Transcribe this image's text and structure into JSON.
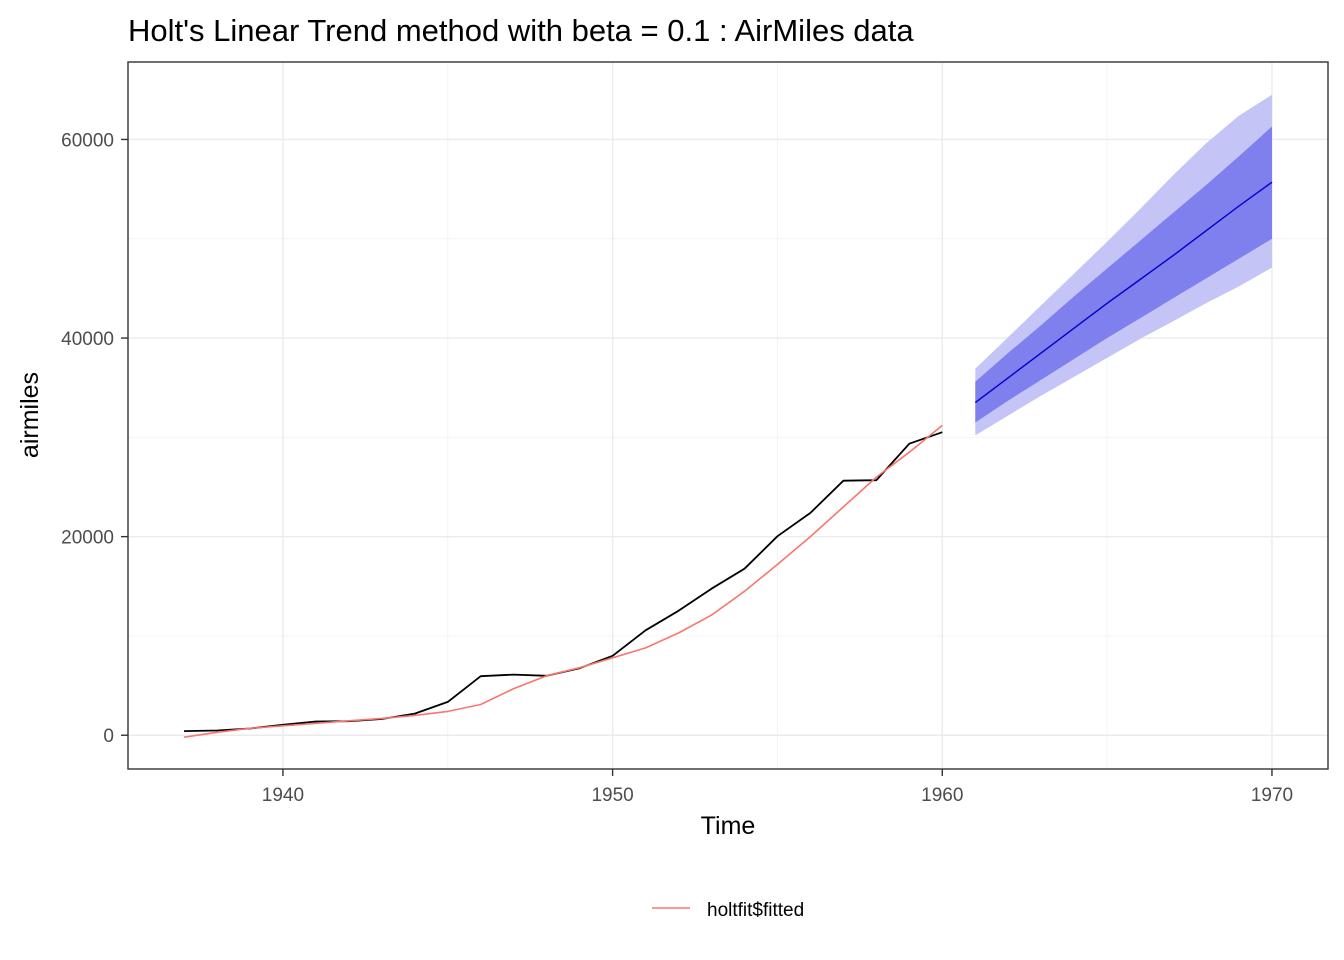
{
  "chart_data": {
    "type": "line",
    "title": "Holt's Linear Trend method with beta = 0.1 : AirMiles data",
    "xlabel": "Time",
    "ylabel": "airmiles",
    "xlim": [
      1935.3,
      1971.7
    ],
    "ylim": [
      -3400,
      67800
    ],
    "x_ticks": [
      1940,
      1950,
      1960,
      1970
    ],
    "x_tick_labels": [
      "1940",
      "1950",
      "1960",
      "1970"
    ],
    "y_ticks": [
      0,
      20000,
      40000,
      60000
    ],
    "y_tick_labels": [
      "0",
      "20000",
      "40000",
      "60000"
    ],
    "x_minor": [
      1945,
      1955,
      1965
    ],
    "y_minor": [
      10000,
      30000,
      50000
    ],
    "grid": true,
    "legend_position": "bottom",
    "series": [
      {
        "name": "",
        "color": "#000000",
        "x": [
          1937,
          1938,
          1939,
          1940,
          1941,
          1942,
          1943,
          1944,
          1945,
          1946,
          1947,
          1948,
          1949,
          1950,
          1951,
          1952,
          1953,
          1954,
          1955,
          1956,
          1957,
          1958,
          1959,
          1960
        ],
        "values": [
          412,
          480,
          683,
          1052,
          1385,
          1418,
          1634,
          2178,
          3362,
          5948,
          6109,
          5981,
          6753,
          8003,
          10566,
          12528,
          14760,
          16769,
          20043,
          22395,
          25633,
          25686,
          29365,
          30514
        ]
      },
      {
        "name": "holtfit$fitted",
        "color": "#F8766D",
        "x": [
          1937,
          1938,
          1939,
          1940,
          1941,
          1942,
          1943,
          1944,
          1945,
          1946,
          1947,
          1948,
          1949,
          1950,
          1951,
          1952,
          1953,
          1954,
          1955,
          1956,
          1957,
          1958,
          1959,
          1960
        ],
        "values": [
          -200,
          300,
          700,
          950,
          1200,
          1450,
          1700,
          2000,
          2400,
          3100,
          4700,
          6000,
          6800,
          7800,
          8800,
          10300,
          12100,
          14500,
          17200,
          20000,
          23000,
          26000,
          28500,
          31200
        ]
      },
      {
        "name": "",
        "color": "#0000CC",
        "x": [
          1961,
          1962,
          1963,
          1964,
          1965,
          1966,
          1967,
          1968,
          1969,
          1970
        ],
        "values": [
          33500,
          36000,
          38500,
          41000,
          43500,
          45900,
          48300,
          50800,
          53300,
          55700
        ],
        "lo80": [
          31500,
          33700,
          35800,
          37900,
          40000,
          42000,
          44000,
          46000,
          48000,
          50000
        ],
        "hi80": [
          35600,
          38500,
          41300,
          44200,
          47000,
          49800,
          52600,
          55400,
          58300,
          61300
        ],
        "lo95": [
          30200,
          32200,
          34200,
          36100,
          38000,
          39900,
          41700,
          43500,
          45200,
          47100
        ],
        "hi95": [
          36900,
          40100,
          43300,
          46500,
          49700,
          53000,
          56400,
          59600,
          62400,
          64500
        ]
      }
    ],
    "colors": {
      "panel_border": "#333333",
      "grid_major": "#ebebeb",
      "grid_minor": "#f4f4f4",
      "band80": "#7f7fee",
      "band95": "#c4c4f6",
      "forecast": "#0000CC",
      "observed": "#000000",
      "fitted": "#F8766D"
    }
  }
}
